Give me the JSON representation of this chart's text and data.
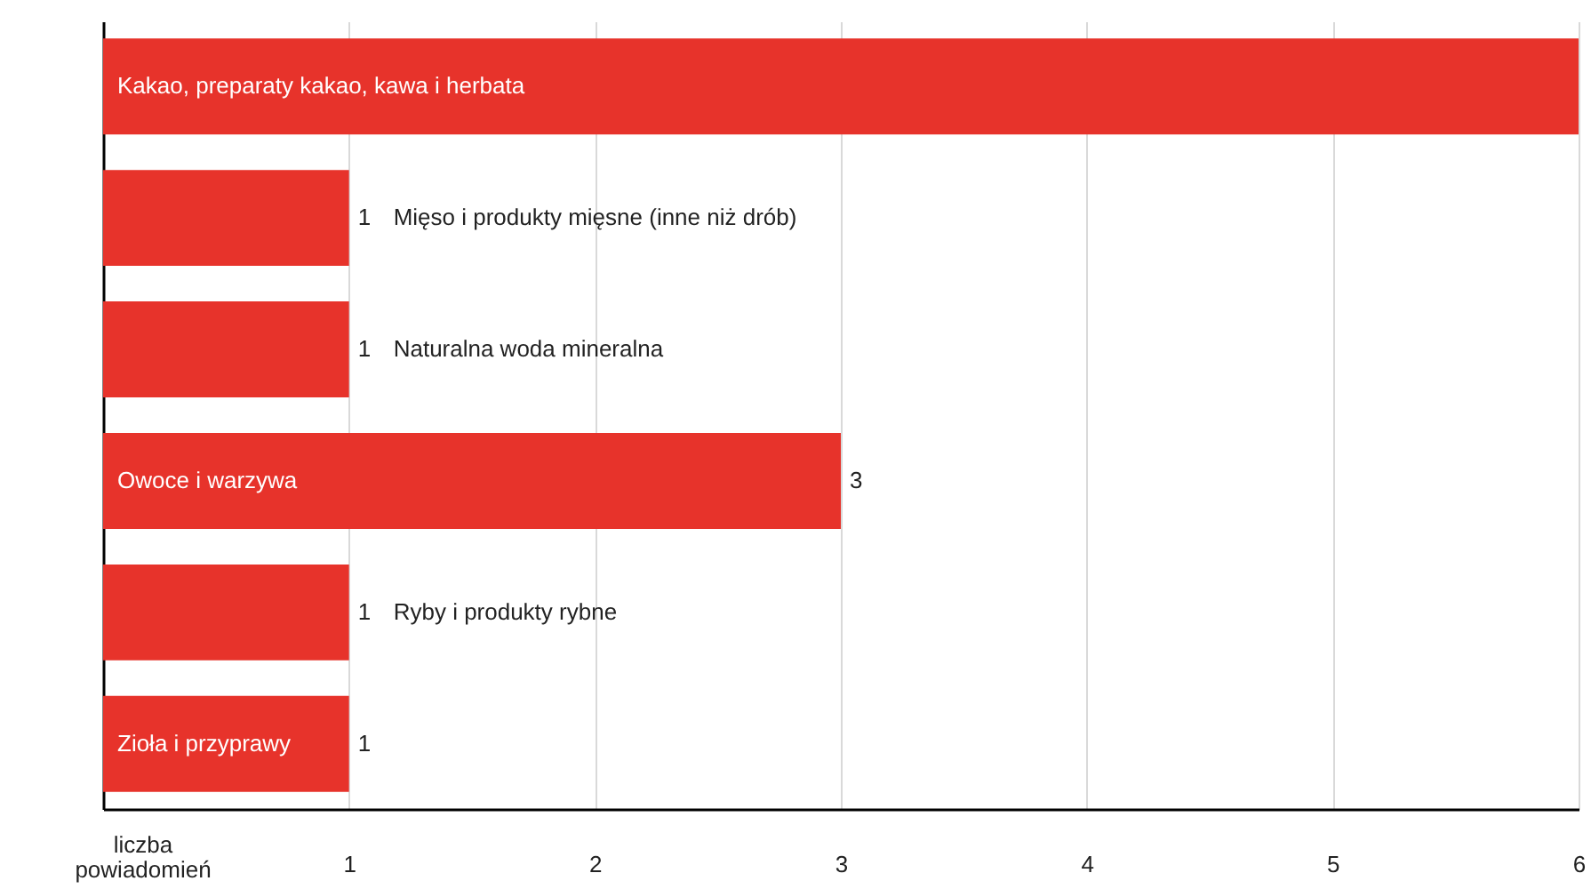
{
  "chart_data": {
    "type": "bar",
    "orientation": "horizontal",
    "categories": [
      "Kakao, preparaty kakao, kawa i herbata",
      "Mięso i produkty mięsne (inne niż drób)",
      "Naturalna woda mineralna",
      "Owoce i warzywa",
      "Ryby i produkty rybne",
      "Zioła i przyprawy"
    ],
    "values": [
      6,
      1,
      1,
      3,
      1,
      1
    ],
    "value_labels": [
      null,
      "1",
      "1",
      "3",
      "1",
      "1"
    ],
    "color": "#e7332b",
    "xlabel": "liczba powiadomień",
    "xlim": [
      0,
      6
    ],
    "xticks": [
      1,
      2,
      3,
      4,
      5,
      6
    ],
    "grid": "x"
  }
}
